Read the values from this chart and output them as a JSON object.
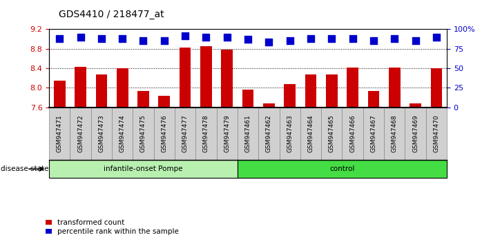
{
  "title": "GDS4410 / 218477_at",
  "samples": [
    "GSM947471",
    "GSM947472",
    "GSM947473",
    "GSM947474",
    "GSM947475",
    "GSM947476",
    "GSM947477",
    "GSM947478",
    "GSM947479",
    "GSM947461",
    "GSM947462",
    "GSM947463",
    "GSM947464",
    "GSM947465",
    "GSM947466",
    "GSM947467",
    "GSM947468",
    "GSM947469",
    "GSM947470"
  ],
  "transformed_count": [
    8.15,
    8.43,
    8.28,
    8.4,
    7.93,
    7.83,
    8.82,
    8.85,
    8.79,
    7.97,
    7.68,
    8.07,
    8.28,
    8.28,
    8.41,
    7.93,
    8.41,
    7.68,
    8.4
  ],
  "percentile_rank": [
    88,
    90,
    88,
    88,
    85,
    85,
    92,
    90,
    90,
    87,
    84,
    85,
    88,
    88,
    88,
    85,
    88,
    85,
    90
  ],
  "ylim_left": [
    7.6,
    9.2
  ],
  "ylim_right": [
    0,
    100
  ],
  "yticks_left": [
    7.6,
    8.0,
    8.4,
    8.8,
    9.2
  ],
  "yticks_right": [
    0,
    25,
    50,
    75,
    100
  ],
  "ytick_labels_right": [
    "0",
    "25",
    "50",
    "75",
    "100%"
  ],
  "grid_values": [
    8.0,
    8.4,
    8.8
  ],
  "bar_color": "#cc0000",
  "dot_color": "#0000cc",
  "groups": [
    {
      "label": "infantile-onset Pompe",
      "start": 0,
      "end": 9,
      "color": "#b8f0b0"
    },
    {
      "label": "control",
      "start": 9,
      "end": 19,
      "color": "#44dd44"
    }
  ],
  "group_label_prefix": "disease state",
  "legend": [
    {
      "label": "transformed count",
      "color": "#cc0000"
    },
    {
      "label": "percentile rank within the sample",
      "color": "#0000cc"
    }
  ],
  "bar_width": 0.55,
  "dot_size": 45,
  "background_color": "#ffffff",
  "tick_label_color_left": "#cc0000",
  "tick_label_color_right": "#0000cc",
  "xticklabel_box_color": "#d0d0d0",
  "xticklabel_box_edge": "#888888",
  "title_fontsize": 10,
  "axis_fontsize": 8,
  "label_fontsize": 8
}
